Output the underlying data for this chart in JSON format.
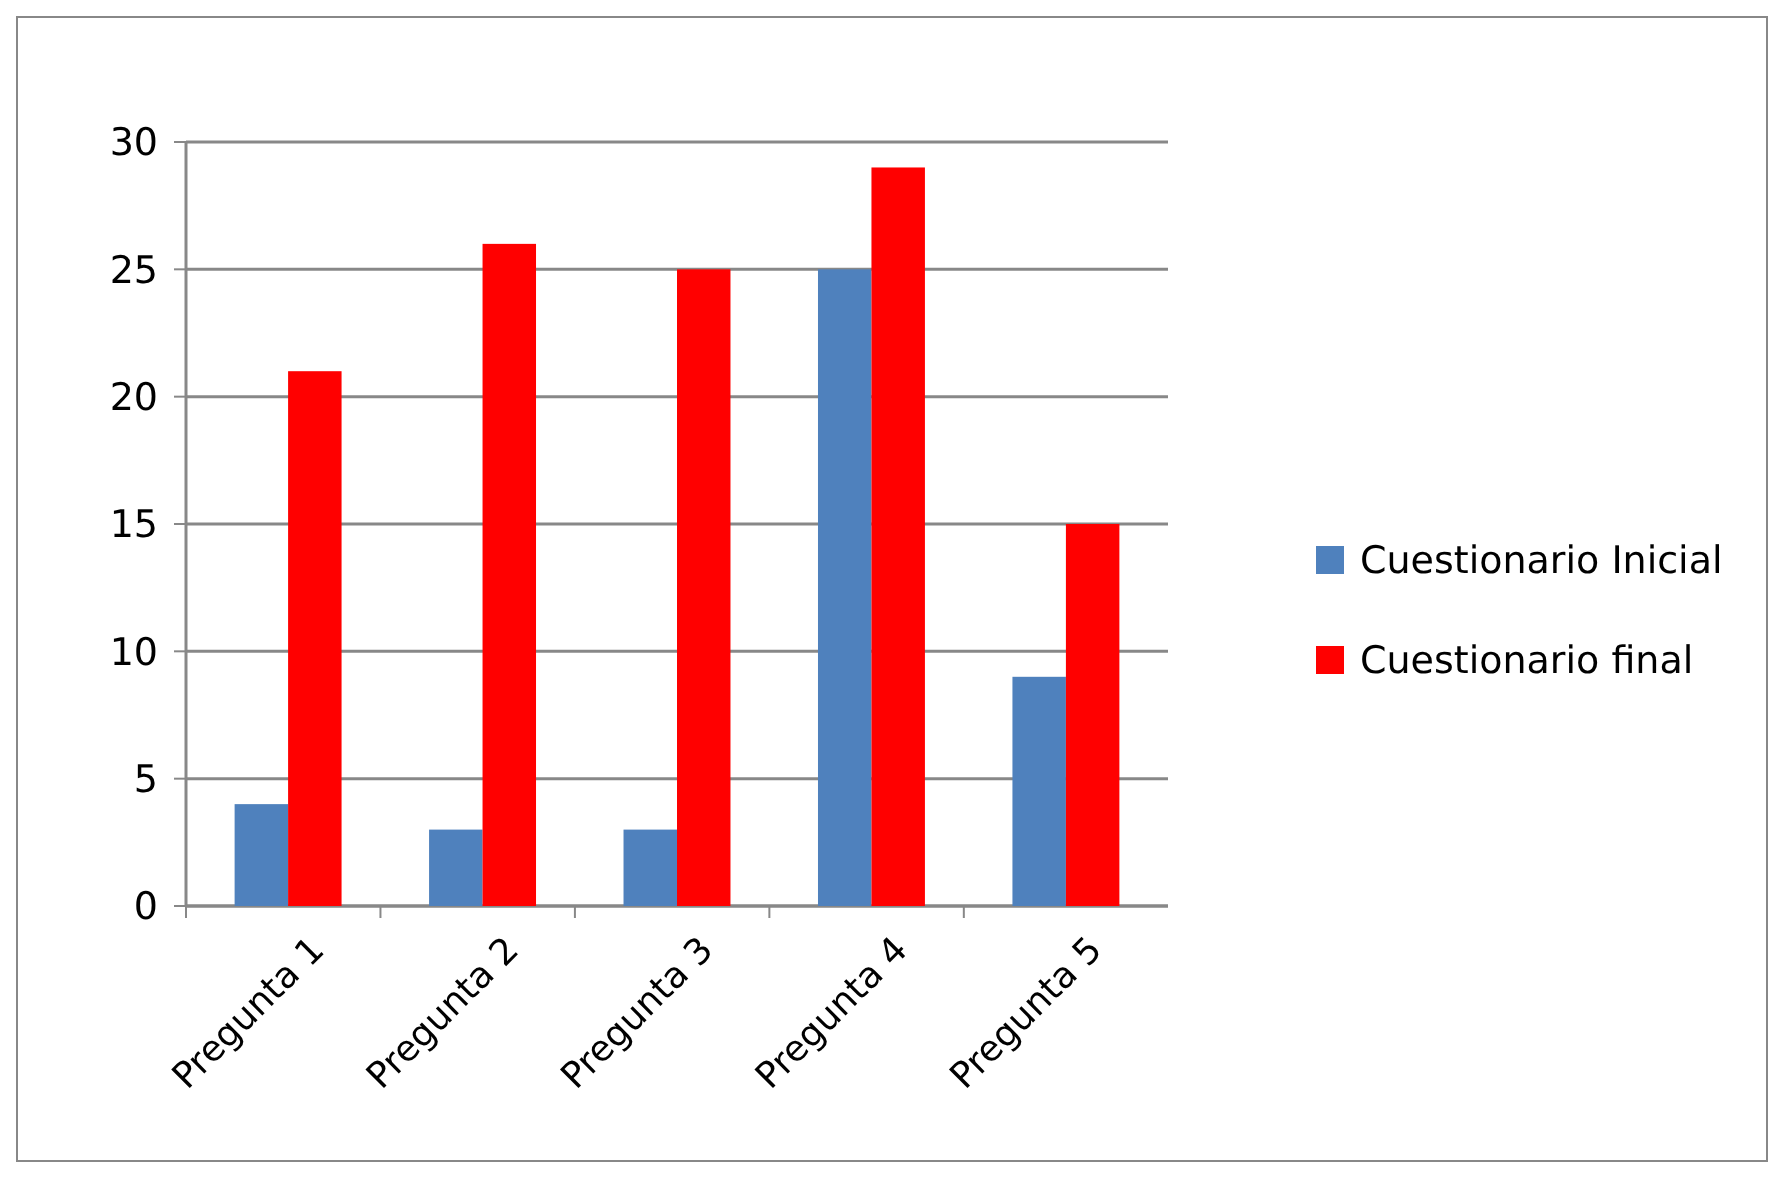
{
  "chart_data": {
    "type": "bar",
    "categories": [
      "Pregunta 1",
      "Pregunta 2",
      "Pregunta 3",
      "Pregunta 4",
      "Pregunta 5"
    ],
    "series": [
      {
        "name": "Cuestionario Inicial",
        "color": "#4f81bd",
        "values": [
          4,
          3,
          3,
          25,
          9
        ]
      },
      {
        "name": "Cuestionario final",
        "color": "#ff0000",
        "values": [
          21,
          26,
          25,
          29,
          15
        ]
      }
    ],
    "ylim": [
      0,
      30
    ],
    "yticks": [
      0,
      5,
      10,
      15,
      20,
      25,
      30
    ],
    "grid": "y",
    "legend": "right"
  }
}
